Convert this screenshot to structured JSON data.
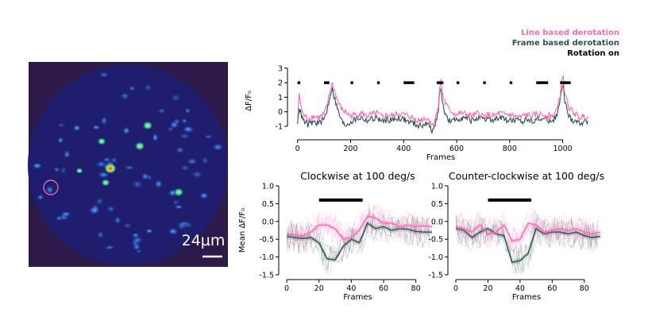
{
  "micrograph": {
    "scalebar_label": "24µm",
    "background_color": "#2c1a4b",
    "roi_color": "#ff77bb"
  },
  "legend": {
    "entries": [
      {
        "label": "Line based derotation",
        "color": "#ff69b4"
      },
      {
        "label": "Frame based derotation",
        "color": "#2f4f4f"
      },
      {
        "label": "Rotation on",
        "color": "#000000"
      }
    ]
  },
  "chart_data": [
    {
      "type": "line",
      "title": "",
      "xlabel": "Frames",
      "ylabel": "ΔF/F₀",
      "xlim": [
        -20,
        1100
      ],
      "ylim": [
        -1.6,
        3.1
      ],
      "xticks": [
        0,
        200,
        400,
        600,
        800,
        1000
      ],
      "yticks": [
        -1,
        0,
        1,
        2,
        3
      ],
      "series": [
        {
          "name": "Line based derotation",
          "color": "#ff69b4",
          "x": [
            0,
            5,
            20,
            40,
            60,
            80,
            100,
            110,
            120,
            130,
            140,
            150,
            160,
            170,
            180,
            200,
            220,
            240,
            260,
            280,
            300,
            320,
            340,
            360,
            380,
            400,
            420,
            440,
            460,
            480,
            500,
            510,
            520,
            530,
            535,
            540,
            550,
            560,
            570,
            580,
            600,
            620,
            640,
            660,
            680,
            700,
            720,
            740,
            760,
            780,
            800,
            820,
            840,
            860,
            880,
            900,
            920,
            960,
            980,
            990,
            1000,
            1005,
            1010,
            1020,
            1030,
            1040,
            1050,
            1060,
            1080,
            1100
          ],
          "y": [
            -0.7,
            1.2,
            -0.2,
            -0.5,
            -0.3,
            -0.4,
            -0.2,
            0.3,
            1.2,
            2.0,
            1.4,
            0.8,
            0.4,
            0.1,
            0.0,
            -0.3,
            -0.2,
            -0.1,
            -0.3,
            -0.2,
            -0.1,
            -0.4,
            -0.2,
            -0.3,
            -0.1,
            -0.2,
            -0.3,
            -0.5,
            -0.6,
            -0.4,
            -0.6,
            -1.0,
            -0.4,
            0.3,
            1.6,
            2.1,
            1.0,
            0.5,
            0.2,
            0.0,
            -0.2,
            -0.1,
            -0.2,
            -0.3,
            -0.1,
            -0.3,
            -0.2,
            -0.3,
            -0.1,
            -0.2,
            -0.2,
            -0.3,
            -0.4,
            -0.2,
            -0.3,
            -0.2,
            -0.2,
            -0.3,
            0.2,
            1.2,
            2.7,
            1.6,
            1.2,
            0.4,
            0.1,
            0.0,
            -0.2,
            -0.4,
            -0.3,
            -0.3
          ]
        },
        {
          "name": "Frame based derotation",
          "color": "#2f4f4f",
          "x": [
            0,
            5,
            20,
            40,
            60,
            80,
            100,
            110,
            120,
            130,
            140,
            150,
            160,
            170,
            180,
            200,
            220,
            240,
            260,
            280,
            300,
            320,
            340,
            360,
            380,
            400,
            420,
            440,
            460,
            480,
            500,
            510,
            520,
            530,
            535,
            540,
            550,
            560,
            570,
            580,
            600,
            620,
            640,
            660,
            680,
            700,
            720,
            740,
            760,
            780,
            800,
            820,
            840,
            860,
            880,
            900,
            920,
            960,
            980,
            990,
            1000,
            1005,
            1010,
            1020,
            1030,
            1040,
            1050,
            1060,
            1080,
            1100
          ],
          "y": [
            -1.0,
            0.4,
            -0.6,
            -0.9,
            -0.7,
            -0.8,
            -0.5,
            0.0,
            0.9,
            1.7,
            0.9,
            0.2,
            -0.3,
            -0.8,
            -0.9,
            -0.7,
            -0.5,
            -0.4,
            -0.6,
            -0.5,
            -0.4,
            -0.7,
            -0.5,
            -0.6,
            -0.4,
            -0.5,
            -0.7,
            -0.8,
            -1.0,
            -0.8,
            -1.0,
            -1.4,
            -0.8,
            -0.1,
            1.3,
            1.4,
            0.4,
            -0.3,
            -0.6,
            -0.7,
            -0.5,
            -0.4,
            -0.5,
            -0.6,
            -0.4,
            -0.6,
            -0.5,
            -0.6,
            -0.4,
            -0.5,
            -0.6,
            -0.6,
            -0.7,
            -0.5,
            -0.6,
            -0.5,
            -0.5,
            -0.6,
            -0.2,
            0.8,
            2.0,
            1.1,
            0.6,
            -0.2,
            -0.5,
            -0.6,
            -0.6,
            -0.8,
            -0.7,
            -0.7
          ]
        }
      ],
      "rotation_on": {
        "y": 2,
        "intervals": [
          [
            0,
            10
          ],
          [
            100,
            120
          ],
          [
            200,
            210
          ],
          [
            300,
            310
          ],
          [
            400,
            440
          ],
          [
            525,
            550
          ],
          [
            600,
            610
          ],
          [
            700,
            710
          ],
          [
            800,
            810
          ],
          [
            900,
            945
          ],
          [
            990,
            1030
          ]
        ]
      }
    },
    {
      "type": "line",
      "title": "Clockwise at 100 deg/s",
      "xlabel": "Frames",
      "ylabel": "Mean ΔF/F₀",
      "xlim": [
        -2,
        90
      ],
      "ylim": [
        -1.5,
        1.0
      ],
      "xticks": [
        0,
        20,
        40,
        60,
        80
      ],
      "yticks": [
        -1.5,
        -1.0,
        -0.5,
        0.0,
        0.5,
        1.0
      ],
      "rotation_on": {
        "y": 0.6,
        "start": 20,
        "end": 47
      },
      "series": [
        {
          "name": "Line based derotation",
          "color": "#ff69b4",
          "x": [
            0,
            5,
            10,
            15,
            20,
            25,
            30,
            35,
            40,
            45,
            50,
            55,
            60,
            65,
            70,
            75,
            80,
            85,
            90
          ],
          "y": [
            -0.35,
            -0.38,
            -0.4,
            -0.3,
            -0.1,
            -0.1,
            -0.2,
            -0.5,
            -0.45,
            -0.25,
            0.15,
            0.1,
            -0.05,
            -0.05,
            -0.15,
            -0.1,
            -0.15,
            -0.12,
            -0.15
          ]
        },
        {
          "name": "Frame based derotation",
          "color": "#2f4f4f",
          "x": [
            0,
            5,
            10,
            15,
            20,
            25,
            30,
            35,
            40,
            45,
            50,
            55,
            60,
            65,
            70,
            75,
            80,
            85,
            90
          ],
          "y": [
            -0.42,
            -0.45,
            -0.48,
            -0.45,
            -0.6,
            -1.05,
            -1.08,
            -0.7,
            -0.5,
            -0.6,
            -0.05,
            -0.2,
            -0.15,
            -0.25,
            -0.2,
            -0.22,
            -0.28,
            -0.3,
            -0.3
          ]
        }
      ]
    },
    {
      "type": "line",
      "title": "Counter-clockwise at 100 deg/s",
      "xlabel": "Frames",
      "ylabel": "",
      "xlim": [
        -2,
        90
      ],
      "ylim": [
        -1.5,
        1.0
      ],
      "xticks": [
        0,
        20,
        40,
        60,
        80
      ],
      "yticks": [
        -1.5,
        -1.0,
        -0.5,
        0.0,
        0.5,
        1.0
      ],
      "rotation_on": {
        "y": 0.6,
        "start": 20,
        "end": 47
      },
      "series": [
        {
          "name": "Line based derotation",
          "color": "#ff69b4",
          "x": [
            0,
            5,
            10,
            15,
            20,
            25,
            30,
            35,
            40,
            45,
            50,
            55,
            60,
            65,
            70,
            75,
            80,
            85,
            90
          ],
          "y": [
            -0.15,
            -0.2,
            -0.3,
            -0.1,
            -0.35,
            -0.3,
            -0.1,
            -0.55,
            -0.5,
            -0.05,
            -0.1,
            -0.3,
            -0.25,
            -0.2,
            -0.25,
            -0.2,
            -0.3,
            -0.35,
            -0.3
          ]
        },
        {
          "name": "Frame based derotation",
          "color": "#2f4f4f",
          "x": [
            0,
            5,
            10,
            15,
            20,
            25,
            30,
            35,
            40,
            45,
            50,
            55,
            60,
            65,
            70,
            75,
            80,
            85,
            90
          ],
          "y": [
            -0.2,
            -0.25,
            -0.45,
            -0.3,
            -0.2,
            -0.35,
            -0.4,
            -1.15,
            -1.1,
            -0.9,
            -0.2,
            -0.35,
            -0.3,
            -0.3,
            -0.35,
            -0.3,
            -0.4,
            -0.45,
            -0.42
          ]
        }
      ]
    }
  ]
}
